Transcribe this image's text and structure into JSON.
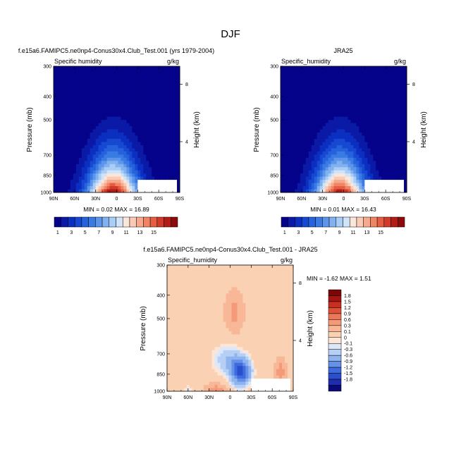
{
  "figure": {
    "title": "DJF"
  },
  "colors": {
    "levels": [
      "#04038a",
      "#0a1aa6",
      "#0b2fc0",
      "#1748d2",
      "#2562dc",
      "#3a7ae3",
      "#5c95ea",
      "#82b1ef",
      "#a9cdf4",
      "#d0e3f8",
      "#fbe7da",
      "#f9cbb4",
      "#f6a98c",
      "#f08566",
      "#e55e43",
      "#d13a28",
      "#b21d16",
      "#8e0b0b"
    ],
    "diff": [
      "#0a0a7a",
      "#1d2cb0",
      "#2b4ecc",
      "#3f6be0",
      "#6591e8",
      "#8fb3ef",
      "#b6cff5",
      "#dce8fa",
      "#fde6d5",
      "#fbd1b4",
      "#f8b898",
      "#f49a78",
      "#ec7658",
      "#de5038",
      "#c82f22",
      "#a51610",
      "#7c0707"
    ]
  },
  "chart_data": [
    {
      "type": "heatmap",
      "title": "f.e15a6.FAMIPC5.ne0np4-Conus30x4.Club_Test.001 (yrs 1979-2004)",
      "variable_label": "Specific humidity",
      "units": "g/kg",
      "ylabel": "Pressure (mb)",
      "right_label": "Height (km)",
      "x_ticks": [
        "90N",
        "60N",
        "30N",
        "0",
        "30S",
        "60S",
        "90S"
      ],
      "y_ticks": [
        "300",
        "400",
        "500",
        "700",
        "850",
        "1000"
      ],
      "height_ticks": [
        "8",
        "4"
      ],
      "xlim": [
        90,
        -90
      ],
      "ylim": [
        1000,
        300
      ],
      "min_max_text": "MIN =  0.02  MAX =  16.89",
      "min": 0.02,
      "max": 16.89
    },
    {
      "type": "heatmap",
      "title": "JRA25",
      "variable_label": "Specific_humidity",
      "units": "g/kg",
      "ylabel": "Pressure (mb)",
      "right_label": "Height (km)",
      "x_ticks": [
        "90N",
        "60N",
        "30N",
        "0",
        "30S",
        "60S",
        "90S"
      ],
      "y_ticks": [
        "300",
        "400",
        "500",
        "700",
        "850",
        "1000"
      ],
      "height_ticks": [
        "8",
        "4"
      ],
      "xlim": [
        90,
        -90
      ],
      "ylim": [
        1000,
        300
      ],
      "min_max_text": "MIN =  0.01  MAX =  16.43",
      "min": 0.01,
      "max": 16.43
    },
    {
      "type": "heatmap",
      "title": "f.e15a6.FAMIPC5.ne0np4-Conus30x4.Club_Test.001 - JRA25",
      "variable_label": "Specific_humidity",
      "units": "g/kg",
      "ylabel": "Pressure (mb)",
      "right_label": "Height (km)",
      "x_ticks": [
        "90N",
        "60N",
        "30N",
        "0",
        "30S",
        "60S",
        "90S"
      ],
      "y_ticks": [
        "300",
        "400",
        "500",
        "700",
        "850",
        "1000"
      ],
      "height_ticks": [
        "8",
        "4"
      ],
      "xlim": [
        90,
        -90
      ],
      "ylim": [
        1000,
        300
      ],
      "min_max_text": "MIN = -1.62  MAX =  1.51",
      "min": -1.62,
      "max": 1.51
    }
  ],
  "colorbar_main": {
    "labels": [
      "1",
      "3",
      "5",
      "7",
      "9",
      "11",
      "13",
      "15"
    ]
  },
  "colorbar_diff": {
    "labels": [
      "1.8",
      "1.5",
      "1.2",
      "0.9",
      "0.6",
      "0.3",
      "0.1",
      "0",
      "-0.1",
      "-0.3",
      "-0.6",
      "-0.9",
      "-1.2",
      "-1.5",
      "-1.8"
    ]
  }
}
